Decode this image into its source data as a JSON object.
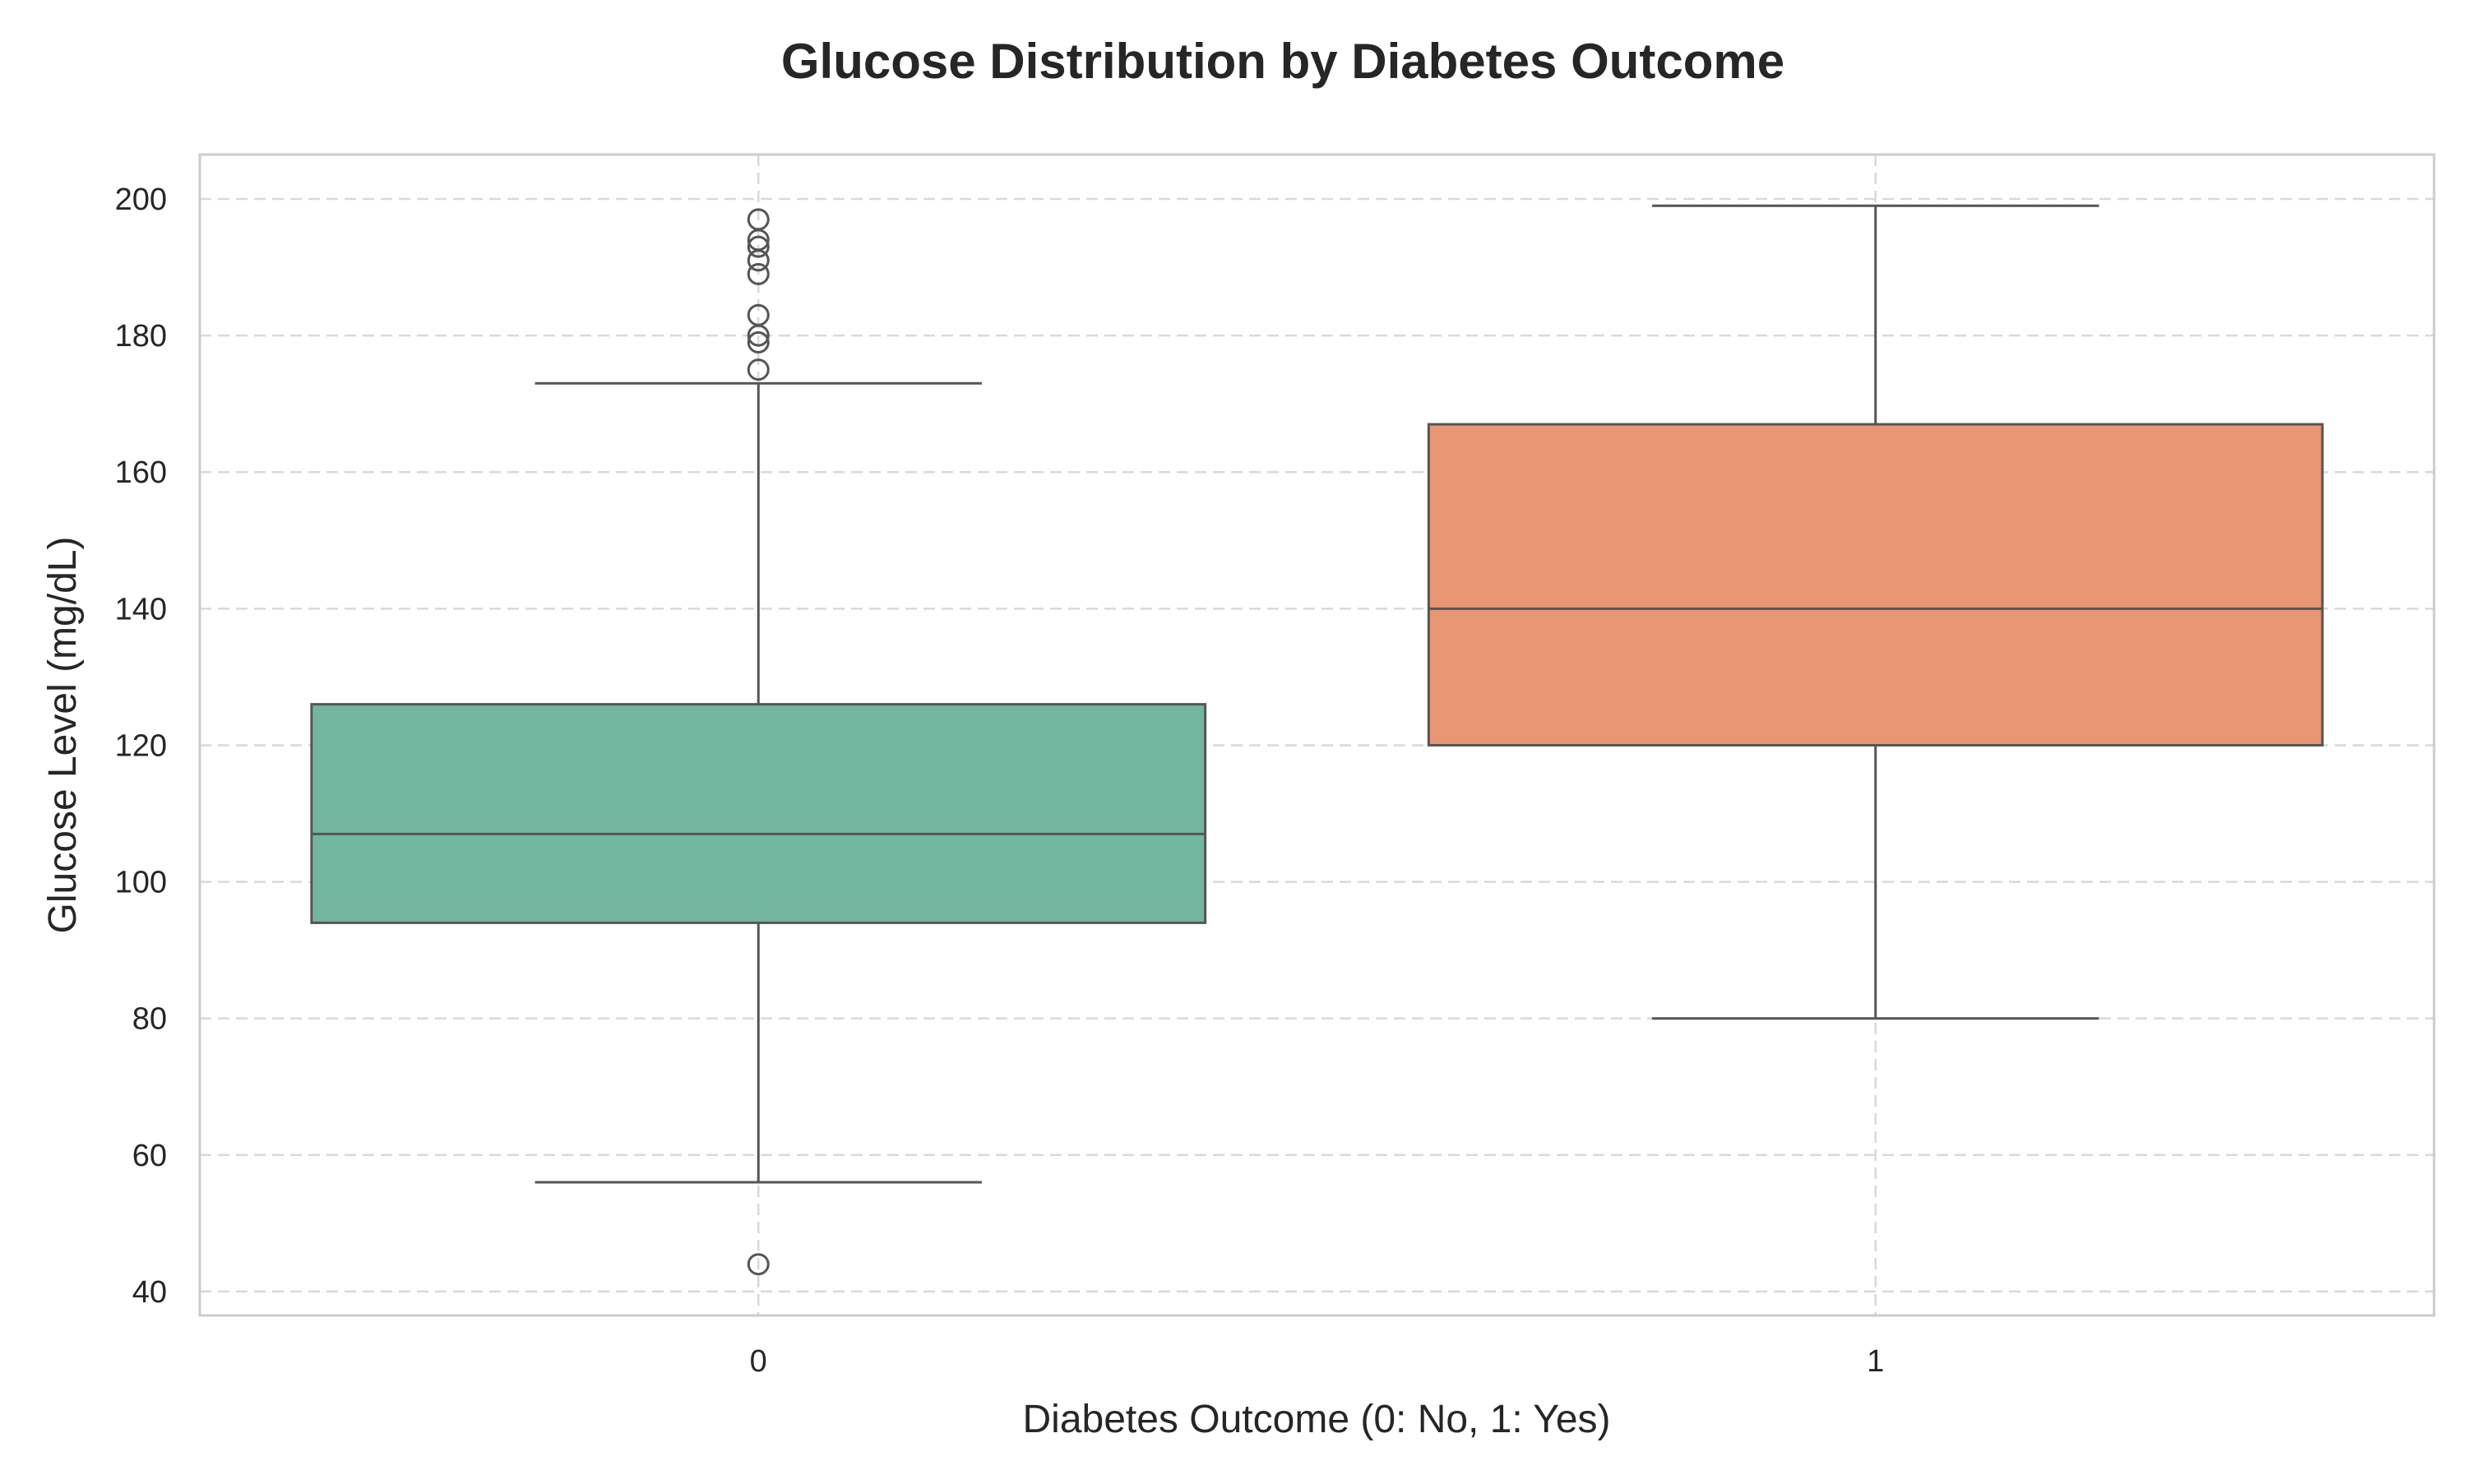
{
  "chart_data": {
    "type": "box",
    "title": "Glucose Distribution by Diabetes Outcome",
    "xlabel": "Diabetes Outcome (0: No, 1: Yes)",
    "ylabel": "Glucose Level (mg/dL)",
    "categories": [
      "0",
      "1"
    ],
    "ylim": [
      36.5,
      206.5
    ],
    "yticks": [
      40,
      60,
      80,
      100,
      120,
      140,
      160,
      180,
      200
    ],
    "grid": true,
    "boxes": [
      {
        "category": "0",
        "color": "#73b6a0",
        "whisker_low": 56,
        "q1": 94,
        "median": 107,
        "q3": 126,
        "whisker_high": 173,
        "outliers": [
          44,
          175,
          179,
          180,
          183,
          189,
          191,
          193,
          194,
          197
        ]
      },
      {
        "category": "1",
        "color": "#e89674",
        "whisker_low": 80,
        "q1": 120,
        "median": 140,
        "q3": 167,
        "whisker_high": 199,
        "outliers": []
      }
    ]
  }
}
